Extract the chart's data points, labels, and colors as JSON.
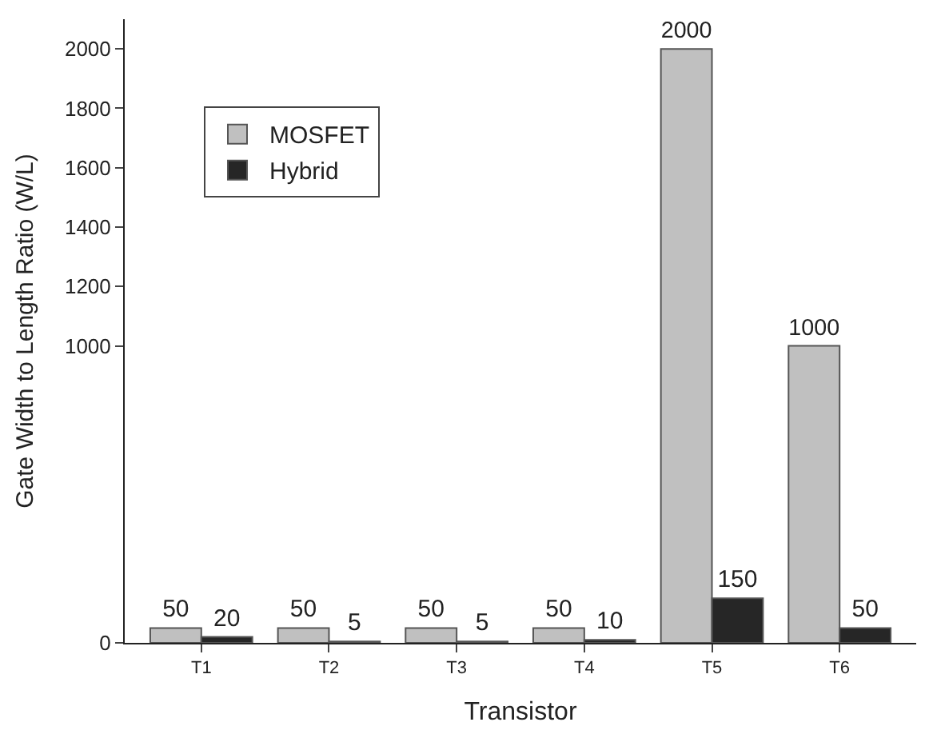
{
  "chart_data": {
    "type": "bar",
    "xlabel": "Transistor",
    "ylabel": "Gate Width to Length Ratio (W/L)",
    "categories": [
      "T1",
      "T2",
      "T3",
      "T4",
      "T5",
      "T6"
    ],
    "series": [
      {
        "name": "MOSFET",
        "color": "#c0c0c0",
        "values": [
          50,
          50,
          50,
          50,
          2000,
          1000
        ]
      },
      {
        "name": "Hybrid",
        "color": "#262626",
        "values": [
          20,
          5,
          5,
          10,
          150,
          50
        ]
      }
    ],
    "ylim": [
      0,
      2100
    ],
    "yticks": [
      0,
      1000,
      1200,
      1400,
      1600,
      1800,
      2000
    ],
    "data_labels": true,
    "legend": "top left"
  }
}
